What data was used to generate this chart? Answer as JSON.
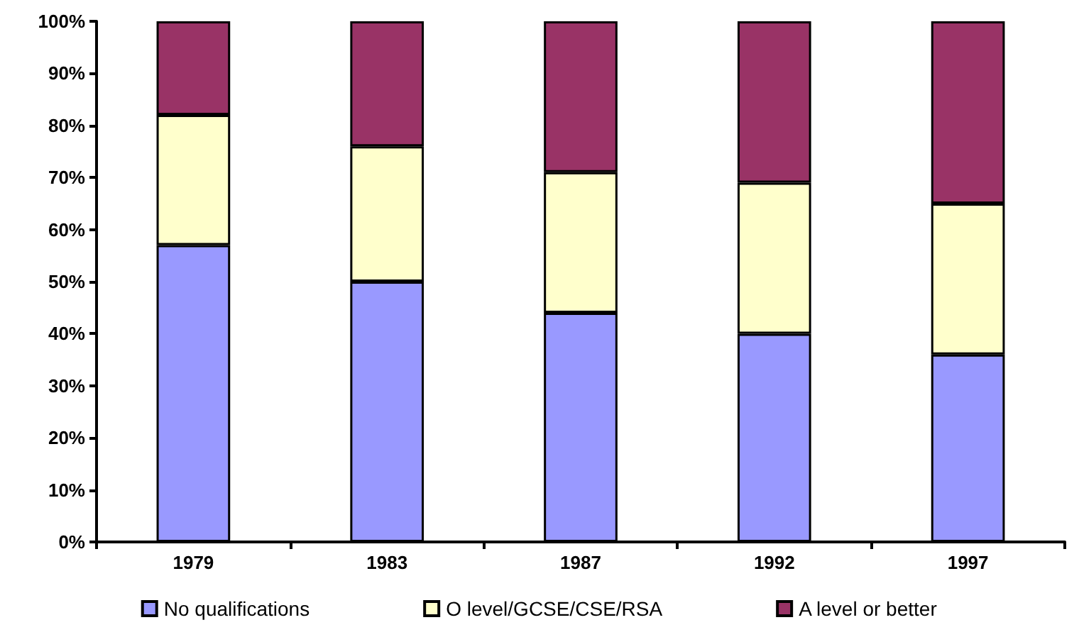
{
  "chart_data": {
    "type": "bar",
    "stacked": true,
    "categories": [
      "1979",
      "1983",
      "1987",
      "1992",
      "1997"
    ],
    "series": [
      {
        "name": "No qualifications",
        "color": "#9999ff",
        "values": [
          57,
          50,
          44,
          40,
          36
        ]
      },
      {
        "name": "O level/GCSE/CSE/RSA",
        "color": "#ffffcc",
        "values": [
          25,
          26,
          27,
          29,
          29
        ]
      },
      {
        "name": "A level or better",
        "color": "#993366",
        "values": [
          18,
          24,
          29,
          31,
          35
        ]
      }
    ],
    "ylim": [
      0,
      100
    ],
    "yticks": [
      {
        "value": 0,
        "label": "0%"
      },
      {
        "value": 10,
        "label": "10%"
      },
      {
        "value": 20,
        "label": "20%"
      },
      {
        "value": 30,
        "label": "30%"
      },
      {
        "value": 40,
        "label": "40%"
      },
      {
        "value": 50,
        "label": "50%"
      },
      {
        "value": 60,
        "label": "60%"
      },
      {
        "value": 70,
        "label": "70%"
      },
      {
        "value": 80,
        "label": "80%"
      },
      {
        "value": 90,
        "label": "90%"
      },
      {
        "value": 100,
        "label": "100%"
      }
    ],
    "grid": false,
    "legend": "bottom"
  }
}
